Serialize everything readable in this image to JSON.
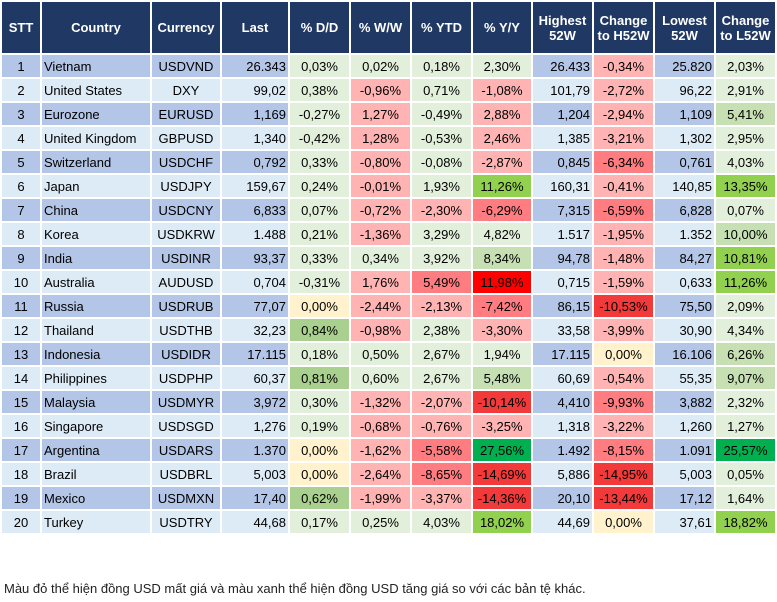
{
  "headers": [
    "STT",
    "Country",
    "Currency",
    "Last",
    "% D/D",
    "% W/W",
    "% YTD",
    "% Y/Y",
    "Highest 52W",
    "Change to H52W",
    "Lowest 52W",
    "Change to L52W"
  ],
  "palette": {
    "lg": "#e2efda",
    "g": "#c6e0b4",
    "m": "#a9d08e",
    "G": "#92d050",
    "GG": "#00b050",
    "lr": "#ffb3b3",
    "rd": "#ff7c80",
    "rr": "#f23a3a",
    "R": "#ff0000",
    "y": "#fff2cc",
    "header": "#203864",
    "row_odd": "#b4c6e7",
    "row_even": "#ddebf7"
  },
  "rows": [
    {
      "stt": "1",
      "country": "Vietnam",
      "currency": "USDVND",
      "last": "26.343",
      "dd": "0,03%",
      "ww": "0,02%",
      "ytd": "0,18%",
      "yy": "2,30%",
      "h52": "26.433",
      "ch": "-0,34%",
      "l52": "25.820",
      "cl": "2,03%",
      "colors": [
        "lg",
        "lg",
        "lg",
        "lg",
        "lr",
        "lg"
      ]
    },
    {
      "stt": "2",
      "country": "United States",
      "currency": "DXY",
      "last": "99,02",
      "dd": "0,38%",
      "ww": "-0,96%",
      "ytd": "0,71%",
      "yy": "-1,08%",
      "h52": "101,79",
      "ch": "-2,72%",
      "l52": "96,22",
      "cl": "2,91%",
      "colors": [
        "lg",
        "lr",
        "lg",
        "lr",
        "lr",
        "lg"
      ]
    },
    {
      "stt": "3",
      "country": "Eurozone",
      "currency": "EURUSD",
      "last": "1,169",
      "dd": "-0,27%",
      "ww": "1,27%",
      "ytd": "-0,49%",
      "yy": "2,88%",
      "h52": "1,204",
      "ch": "-2,94%",
      "l52": "1,109",
      "cl": "5,41%",
      "colors": [
        "lg",
        "lr",
        "lg",
        "lr",
        "lr",
        "g"
      ]
    },
    {
      "stt": "4",
      "country": "United Kingdom",
      "currency": "GBPUSD",
      "last": "1,340",
      "dd": "-0,42%",
      "ww": "1,28%",
      "ytd": "-0,53%",
      "yy": "2,46%",
      "h52": "1,385",
      "ch": "-3,21%",
      "l52": "1,302",
      "cl": "2,95%",
      "colors": [
        "lg",
        "lr",
        "lg",
        "lr",
        "lr",
        "lg"
      ]
    },
    {
      "stt": "5",
      "country": "Switzerland",
      "currency": "USDCHF",
      "last": "0,792",
      "dd": "0,33%",
      "ww": "-0,80%",
      "ytd": "-0,08%",
      "yy": "-2,87%",
      "h52": "0,845",
      "ch": "-6,34%",
      "l52": "0,761",
      "cl": "4,03%",
      "colors": [
        "lg",
        "lr",
        "lg",
        "lr",
        "rd",
        "lg"
      ]
    },
    {
      "stt": "6",
      "country": "Japan",
      "currency": "USDJPY",
      "last": "159,67",
      "dd": "0,24%",
      "ww": "-0,01%",
      "ytd": "1,93%",
      "yy": "11,26%",
      "h52": "160,31",
      "ch": "-0,41%",
      "l52": "140,85",
      "cl": "13,35%",
      "colors": [
        "lg",
        "lr",
        "lg",
        "G",
        "lr",
        "G"
      ]
    },
    {
      "stt": "7",
      "country": "China",
      "currency": "USDCNY",
      "last": "6,833",
      "dd": "0,07%",
      "ww": "-0,72%",
      "ytd": "-2,30%",
      "yy": "-6,29%",
      "h52": "7,315",
      "ch": "-6,59%",
      "l52": "6,828",
      "cl": "0,07%",
      "colors": [
        "lg",
        "lr",
        "lr",
        "rd",
        "rd",
        "lg"
      ]
    },
    {
      "stt": "8",
      "country": "Korea",
      "currency": "USDKRW",
      "last": "1.488",
      "dd": "0,21%",
      "ww": "-1,36%",
      "ytd": "3,29%",
      "yy": "4,82%",
      "h52": "1.517",
      "ch": "-1,95%",
      "l52": "1.352",
      "cl": "10,00%",
      "colors": [
        "lg",
        "lr",
        "lg",
        "lg",
        "lr",
        "g"
      ]
    },
    {
      "stt": "9",
      "country": "India",
      "currency": "USDINR",
      "last": "93,37",
      "dd": "0,33%",
      "ww": "0,34%",
      "ytd": "3,92%",
      "yy": "8,34%",
      "h52": "94,78",
      "ch": "-1,48%",
      "l52": "84,27",
      "cl": "10,81%",
      "colors": [
        "lg",
        "lg",
        "lg",
        "g",
        "lr",
        "G"
      ]
    },
    {
      "stt": "10",
      "country": "Australia",
      "currency": "AUDUSD",
      "last": "0,704",
      "dd": "-0,31%",
      "ww": "1,76%",
      "ytd": "5,49%",
      "yy": "11,98%",
      "h52": "0,715",
      "ch": "-1,59%",
      "l52": "0,633",
      "cl": "11,26%",
      "colors": [
        "lg",
        "lr",
        "rd",
        "R",
        "lr",
        "G"
      ]
    },
    {
      "stt": "11",
      "country": "Russia",
      "currency": "USDRUB",
      "last": "77,07",
      "dd": "0,00%",
      "ww": "-2,44%",
      "ytd": "-2,13%",
      "yy": "-7,42%",
      "h52": "86,15",
      "ch": "-10,53%",
      "l52": "75,50",
      "cl": "2,09%",
      "colors": [
        "y",
        "lr",
        "lr",
        "rd",
        "rr",
        "lg"
      ]
    },
    {
      "stt": "12",
      "country": "Thailand",
      "currency": "USDTHB",
      "last": "32,23",
      "dd": "0,84%",
      "ww": "-0,98%",
      "ytd": "2,38%",
      "yy": "-3,30%",
      "h52": "33,58",
      "ch": "-3,99%",
      "l52": "30,90",
      "cl": "4,34%",
      "colors": [
        "m",
        "lr",
        "lg",
        "lr",
        "lr",
        "lg"
      ]
    },
    {
      "stt": "13",
      "country": "Indonesia",
      "currency": "USDIDR",
      "last": "17.115",
      "dd": "0,18%",
      "ww": "0,50%",
      "ytd": "2,67%",
      "yy": "1,94%",
      "h52": "17.115",
      "ch": "0,00%",
      "l52": "16.106",
      "cl": "6,26%",
      "colors": [
        "lg",
        "lg",
        "lg",
        "lg",
        "y",
        "g"
      ]
    },
    {
      "stt": "14",
      "country": "Philippines",
      "currency": "USDPHP",
      "last": "60,37",
      "dd": "0,81%",
      "ww": "0,60%",
      "ytd": "2,67%",
      "yy": "5,48%",
      "h52": "60,69",
      "ch": "-0,54%",
      "l52": "55,35",
      "cl": "9,07%",
      "colors": [
        "m",
        "lg",
        "lg",
        "g",
        "lr",
        "g"
      ]
    },
    {
      "stt": "15",
      "country": "Malaysia",
      "currency": "USDMYR",
      "last": "3,972",
      "dd": "0,30%",
      "ww": "-1,32%",
      "ytd": "-2,07%",
      "yy": "-10,14%",
      "h52": "4,410",
      "ch": "-9,93%",
      "l52": "3,882",
      "cl": "2,32%",
      "colors": [
        "lg",
        "lr",
        "lr",
        "rr",
        "rd",
        "lg"
      ]
    },
    {
      "stt": "16",
      "country": "Singapore",
      "currency": "USDSGD",
      "last": "1,276",
      "dd": "0,19%",
      "ww": "-0,68%",
      "ytd": "-0,76%",
      "yy": "-3,25%",
      "h52": "1,318",
      "ch": "-3,22%",
      "l52": "1,260",
      "cl": "1,27%",
      "colors": [
        "lg",
        "lr",
        "lr",
        "lr",
        "lr",
        "lg"
      ]
    },
    {
      "stt": "17",
      "country": "Argentina",
      "currency": "USDARS",
      "last": "1.370",
      "dd": "0,00%",
      "ww": "-1,62%",
      "ytd": "-5,58%",
      "yy": "27,56%",
      "h52": "1.492",
      "ch": "-8,15%",
      "l52": "1.091",
      "cl": "25,57%",
      "colors": [
        "y",
        "lr",
        "rd",
        "GG",
        "rd",
        "GG"
      ]
    },
    {
      "stt": "18",
      "country": "Brazil",
      "currency": "USDBRL",
      "last": "5,003",
      "dd": "0,00%",
      "ww": "-2,64%",
      "ytd": "-8,65%",
      "yy": "-14,69%",
      "h52": "5,886",
      "ch": "-14,95%",
      "l52": "5,003",
      "cl": "0,05%",
      "colors": [
        "y",
        "lr",
        "rd",
        "rr",
        "rr",
        "lg"
      ]
    },
    {
      "stt": "19",
      "country": "Mexico",
      "currency": "USDMXN",
      "last": "17,40",
      "dd": "0,62%",
      "ww": "-1,99%",
      "ytd": "-3,37%",
      "yy": "-14,36%",
      "h52": "20,10",
      "ch": "-13,44%",
      "l52": "17,12",
      "cl": "1,64%",
      "colors": [
        "m",
        "lr",
        "lr",
        "rr",
        "rr",
        "lg"
      ]
    },
    {
      "stt": "20",
      "country": "Turkey",
      "currency": "USDTRY",
      "last": "44,68",
      "dd": "0,17%",
      "ww": "0,25%",
      "ytd": "4,03%",
      "yy": "18,02%",
      "h52": "44,69",
      "ch": "0,00%",
      "l52": "37,61",
      "cl": "18,82%",
      "colors": [
        "lg",
        "lg",
        "lg",
        "G",
        "y",
        "G"
      ]
    }
  ],
  "note": "Màu đỏ thể hiện đồng USD mất giá và màu xanh thể hiện đồng USD tăng giá so với các bản tệ khác."
}
